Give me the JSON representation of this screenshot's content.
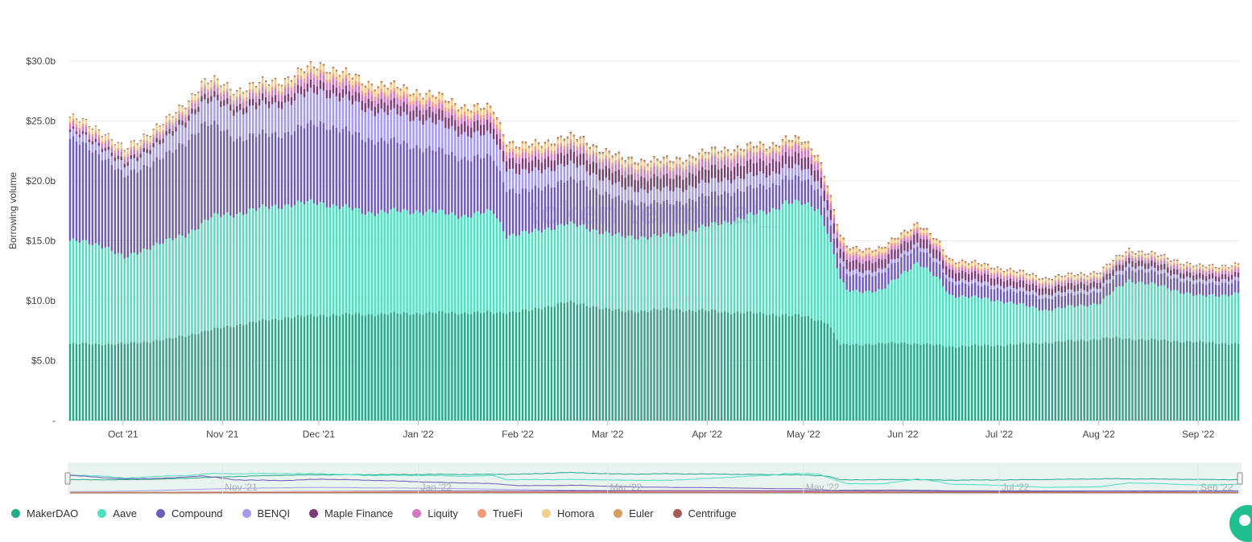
{
  "chart_data": {
    "type": "bar",
    "stacked": true,
    "ylabel": "Borrowing volume",
    "yticks": [
      "-",
      "$5.0b",
      "$10.0b",
      "$15.0b",
      "$20.0b",
      "$25.0b",
      "$30.0b"
    ],
    "ylim": [
      0,
      30
    ],
    "grid": true,
    "legend_position": "bottom",
    "x_start": "2021-09-14",
    "x_end": "2022-09-13",
    "x_ticks": [
      {
        "date": "2021-10-01",
        "label": "Oct '21"
      },
      {
        "date": "2021-11-01",
        "label": "Nov '21"
      },
      {
        "date": "2021-12-01",
        "label": "Dec '21"
      },
      {
        "date": "2022-01-01",
        "label": "Jan '22"
      },
      {
        "date": "2022-02-01",
        "label": "Feb '22"
      },
      {
        "date": "2022-03-01",
        "label": "Mar '22"
      },
      {
        "date": "2022-04-01",
        "label": "Apr '22"
      },
      {
        "date": "2022-05-01",
        "label": "May '22"
      },
      {
        "date": "2022-06-01",
        "label": "Jun '22"
      },
      {
        "date": "2022-07-01",
        "label": "Jul '22"
      },
      {
        "date": "2022-08-01",
        "label": "Aug '22"
      },
      {
        "date": "2022-09-01",
        "label": "Sep '22"
      }
    ],
    "navigator_ticks": [
      {
        "date": "2021-11-01",
        "label": "Nov '21"
      },
      {
        "date": "2022-01-01",
        "label": "Jan '22"
      },
      {
        "date": "2022-03-01",
        "label": "Mar '22"
      },
      {
        "date": "2022-05-01",
        "label": "May '22"
      },
      {
        "date": "2022-07-01",
        "label": "Jul '22"
      },
      {
        "date": "2022-09-01",
        "label": "Sep '22"
      }
    ],
    "series": [
      {
        "name": "MakerDAO",
        "color": "#27a889",
        "points": [
          [
            "2021-09-14",
            6.4
          ],
          [
            "2021-10-01",
            6.4
          ],
          [
            "2021-10-15",
            6.8
          ],
          [
            "2021-10-25",
            7.4
          ],
          [
            "2021-11-05",
            8.0
          ],
          [
            "2021-11-20",
            8.6
          ],
          [
            "2021-12-01",
            8.8
          ],
          [
            "2021-12-20",
            8.9
          ],
          [
            "2022-01-05",
            9.0
          ],
          [
            "2022-01-24",
            9.0
          ],
          [
            "2022-02-05",
            9.2
          ],
          [
            "2022-02-15",
            9.9
          ],
          [
            "2022-02-25",
            9.5
          ],
          [
            "2022-03-05",
            9.1
          ],
          [
            "2022-03-20",
            9.3
          ],
          [
            "2022-04-05",
            9.1
          ],
          [
            "2022-04-20",
            8.9
          ],
          [
            "2022-05-01",
            8.7
          ],
          [
            "2022-05-08",
            8.2
          ],
          [
            "2022-05-12",
            6.3
          ],
          [
            "2022-06-01",
            6.5
          ],
          [
            "2022-06-15",
            6.2
          ],
          [
            "2022-07-01",
            6.3
          ],
          [
            "2022-07-20",
            6.6
          ],
          [
            "2022-08-05",
            6.9
          ],
          [
            "2022-08-20",
            6.7
          ],
          [
            "2022-09-13",
            6.4
          ]
        ]
      },
      {
        "name": "Aave",
        "color": "#4fe0c0",
        "points": [
          [
            "2021-09-14",
            8.6
          ],
          [
            "2021-09-25",
            8.2
          ],
          [
            "2021-10-01",
            7.1
          ],
          [
            "2021-10-10",
            8.0
          ],
          [
            "2021-10-20",
            8.4
          ],
          [
            "2021-10-28",
            9.4
          ],
          [
            "2021-11-05",
            9.3
          ],
          [
            "2021-11-15",
            9.4
          ],
          [
            "2021-12-01",
            9.4
          ],
          [
            "2021-12-15",
            8.5
          ],
          [
            "2022-01-01",
            8.5
          ],
          [
            "2022-01-15",
            8.1
          ],
          [
            "2022-01-24",
            8.4
          ],
          [
            "2022-01-28",
            6.4
          ],
          [
            "2022-02-10",
            6.5
          ],
          [
            "2022-02-20",
            6.5
          ],
          [
            "2022-03-05",
            6.2
          ],
          [
            "2022-03-20",
            6.1
          ],
          [
            "2022-04-05",
            7.4
          ],
          [
            "2022-04-20",
            8.6
          ],
          [
            "2022-04-25",
            9.4
          ],
          [
            "2022-05-05",
            9.3
          ],
          [
            "2022-05-10",
            6.5
          ],
          [
            "2022-05-14",
            4.5
          ],
          [
            "2022-05-25",
            4.4
          ],
          [
            "2022-06-05",
            6.8
          ],
          [
            "2022-06-12",
            5.4
          ],
          [
            "2022-06-15",
            4.3
          ],
          [
            "2022-07-01",
            3.7
          ],
          [
            "2022-07-15",
            2.7
          ],
          [
            "2022-08-01",
            3.0
          ],
          [
            "2022-08-10",
            4.9
          ],
          [
            "2022-08-20",
            4.5
          ],
          [
            "2022-09-01",
            3.8
          ],
          [
            "2022-09-13",
            4.2
          ]
        ]
      },
      {
        "name": "Compound",
        "color": "#6f5cb8",
        "points": [
          [
            "2021-09-14",
            8.5
          ],
          [
            "2021-10-01",
            6.8
          ],
          [
            "2021-10-15",
            7.2
          ],
          [
            "2021-10-25",
            8.3
          ],
          [
            "2021-11-05",
            6.3
          ],
          [
            "2021-11-20",
            6.0
          ],
          [
            "2021-12-01",
            6.7
          ],
          [
            "2021-12-20",
            6.0
          ],
          [
            "2022-01-05",
            5.2
          ],
          [
            "2022-01-24",
            4.5
          ],
          [
            "2022-02-01",
            3.5
          ],
          [
            "2022-02-20",
            3.7
          ],
          [
            "2022-03-05",
            3.0
          ],
          [
            "2022-03-20",
            2.7
          ],
          [
            "2022-04-05",
            2.5
          ],
          [
            "2022-04-20",
            2.1
          ],
          [
            "2022-05-01",
            2.0
          ],
          [
            "2022-05-10",
            1.3
          ],
          [
            "2022-06-01",
            1.4
          ],
          [
            "2022-06-15",
            1.1
          ],
          [
            "2022-07-01",
            1.0
          ],
          [
            "2022-08-01",
            1.0
          ],
          [
            "2022-09-13",
            1.0
          ]
        ]
      },
      {
        "name": "BENQI",
        "color": "#a49af0",
        "points": [
          [
            "2021-09-14",
            0.6
          ],
          [
            "2021-10-01",
            0.8
          ],
          [
            "2021-10-25",
            1.8
          ],
          [
            "2021-11-05",
            2.2
          ],
          [
            "2021-11-20",
            2.5
          ],
          [
            "2021-12-01",
            2.7
          ],
          [
            "2021-12-20",
            2.4
          ],
          [
            "2022-01-05",
            2.3
          ],
          [
            "2022-01-24",
            1.8
          ],
          [
            "2022-02-10",
            1.4
          ],
          [
            "2022-03-05",
            1.1
          ],
          [
            "2022-04-05",
            1.1
          ],
          [
            "2022-05-01",
            0.9
          ],
          [
            "2022-05-10",
            0.4
          ],
          [
            "2022-06-01",
            0.3
          ],
          [
            "2022-09-13",
            0.3
          ]
        ]
      },
      {
        "name": "Maple Finance",
        "color": "#7a3d78",
        "points": [
          [
            "2021-09-14",
            0.2
          ],
          [
            "2021-11-01",
            0.5
          ],
          [
            "2021-12-01",
            0.7
          ],
          [
            "2022-01-05",
            0.9
          ],
          [
            "2022-02-05",
            0.9
          ],
          [
            "2022-03-05",
            1.0
          ],
          [
            "2022-04-05",
            1.1
          ],
          [
            "2022-05-01",
            1.0
          ],
          [
            "2022-05-12",
            0.8
          ],
          [
            "2022-06-05",
            0.8
          ],
          [
            "2022-07-01",
            0.6
          ],
          [
            "2022-09-13",
            0.4
          ]
        ]
      },
      {
        "name": "Liquity",
        "color": "#d078c0",
        "points": [
          [
            "2021-09-14",
            0.4
          ],
          [
            "2021-11-01",
            0.5
          ],
          [
            "2021-12-01",
            0.6
          ],
          [
            "2022-01-05",
            0.5
          ],
          [
            "2022-02-05",
            0.5
          ],
          [
            "2022-04-05",
            0.7
          ],
          [
            "2022-05-01",
            0.6
          ],
          [
            "2022-06-01",
            0.3
          ],
          [
            "2022-09-13",
            0.3
          ]
        ]
      },
      {
        "name": "TrueFi",
        "color": "#f29a7a",
        "points": [
          [
            "2021-09-14",
            0.2
          ],
          [
            "2021-12-01",
            0.3
          ],
          [
            "2022-03-05",
            0.3
          ],
          [
            "2022-06-01",
            0.2
          ],
          [
            "2022-09-13",
            0.15
          ]
        ]
      },
      {
        "name": "Homora",
        "color": "#f5cf8e",
        "points": [
          [
            "2021-09-14",
            0.35
          ],
          [
            "2021-12-01",
            0.45
          ],
          [
            "2022-03-05",
            0.35
          ],
          [
            "2022-06-01",
            0.25
          ],
          [
            "2022-09-13",
            0.2
          ]
        ]
      },
      {
        "name": "Euler",
        "color": "#d6a062",
        "points": [
          [
            "2021-09-14",
            0.05
          ],
          [
            "2021-12-01",
            0.1
          ],
          [
            "2022-03-05",
            0.15
          ],
          [
            "2022-05-01",
            0.12
          ],
          [
            "2022-09-13",
            0.05
          ]
        ]
      },
      {
        "name": "Centrifuge",
        "color": "#a35c57",
        "points": [
          [
            "2021-09-14",
            0.05
          ],
          [
            "2022-03-05",
            0.08
          ],
          [
            "2022-09-13",
            0.06
          ]
        ]
      }
    ],
    "watermark": "token terminal_"
  }
}
